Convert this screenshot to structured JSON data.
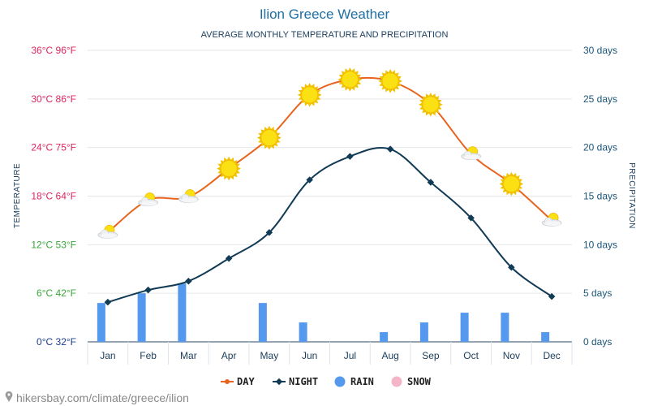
{
  "chart_data": {
    "type": "line",
    "title": "Ilion Greece Weather",
    "subtitle": "AVERAGE MONTHLY TEMPERATURE AND PRECIPITATION",
    "ylabel_left": "TEMPERATURE",
    "ylabel_right": "PRECIPITATION",
    "categories": [
      "Jan",
      "Feb",
      "Mar",
      "Apr",
      "May",
      "Jun",
      "Jul",
      "Aug",
      "Sep",
      "Oct",
      "Nov",
      "Dec"
    ],
    "ylim_left_c": [
      0,
      36
    ],
    "ylim_right_days": [
      0,
      30
    ],
    "left_ticks": [
      {
        "value": 0,
        "label": "0°C 32°F",
        "color": "#1a3d8f"
      },
      {
        "value": 6,
        "label": "6°C 42°F",
        "color": "#3aa63a"
      },
      {
        "value": 12,
        "label": "12°C 53°F",
        "color": "#3aa63a"
      },
      {
        "value": 18,
        "label": "18°C 64°F",
        "color": "#e0245e"
      },
      {
        "value": 24,
        "label": "24°C 75°F",
        "color": "#e0245e"
      },
      {
        "value": 30,
        "label": "30°C 86°F",
        "color": "#e0245e"
      },
      {
        "value": 36,
        "label": "36°C 96°F",
        "color": "#e0245e"
      }
    ],
    "right_ticks": [
      {
        "value": 0,
        "label": "0 days"
      },
      {
        "value": 5,
        "label": "5 days"
      },
      {
        "value": 10,
        "label": "10 days"
      },
      {
        "value": 15,
        "label": "15 days"
      },
      {
        "value": 20,
        "label": "20 days"
      },
      {
        "value": 25,
        "label": "25 days"
      },
      {
        "value": 30,
        "label": "30 days"
      }
    ],
    "series": [
      {
        "name": "DAY",
        "unit": "°C",
        "color": "#e8641e",
        "values": [
          13.5,
          17.5,
          17.9,
          21.4,
          25.2,
          30.5,
          32.4,
          32.2,
          29.3,
          23.2,
          19.5,
          15.0
        ]
      },
      {
        "name": "NIGHT",
        "unit": "°C",
        "color": "#113a55",
        "values": [
          4.9,
          6.4,
          7.5,
          10.3,
          13.5,
          20.0,
          22.9,
          23.8,
          19.7,
          15.3,
          9.2,
          5.6
        ]
      },
      {
        "name": "RAIN",
        "unit": "days",
        "color": "#5599ee",
        "values": [
          4,
          5,
          6,
          0,
          4,
          2,
          0,
          1,
          2,
          3,
          3,
          1
        ]
      },
      {
        "name": "SNOW",
        "unit": "days",
        "color": "#f5b5c8",
        "values": [
          0,
          0,
          0,
          0,
          0,
          0,
          0,
          0,
          0,
          0,
          0,
          0
        ]
      }
    ],
    "day_icons": [
      "partly-cloudy",
      "partly-cloudy",
      "partly-cloudy",
      "sun",
      "sun",
      "sun",
      "sun",
      "sun",
      "sun",
      "partly-cloudy",
      "sun",
      "partly-cloudy"
    ],
    "legend": [
      "DAY",
      "NIGHT",
      "RAIN",
      "SNOW"
    ],
    "legend_position": "bottom-center"
  },
  "watermark": "hikersbay.com/climate/greece/ilion"
}
